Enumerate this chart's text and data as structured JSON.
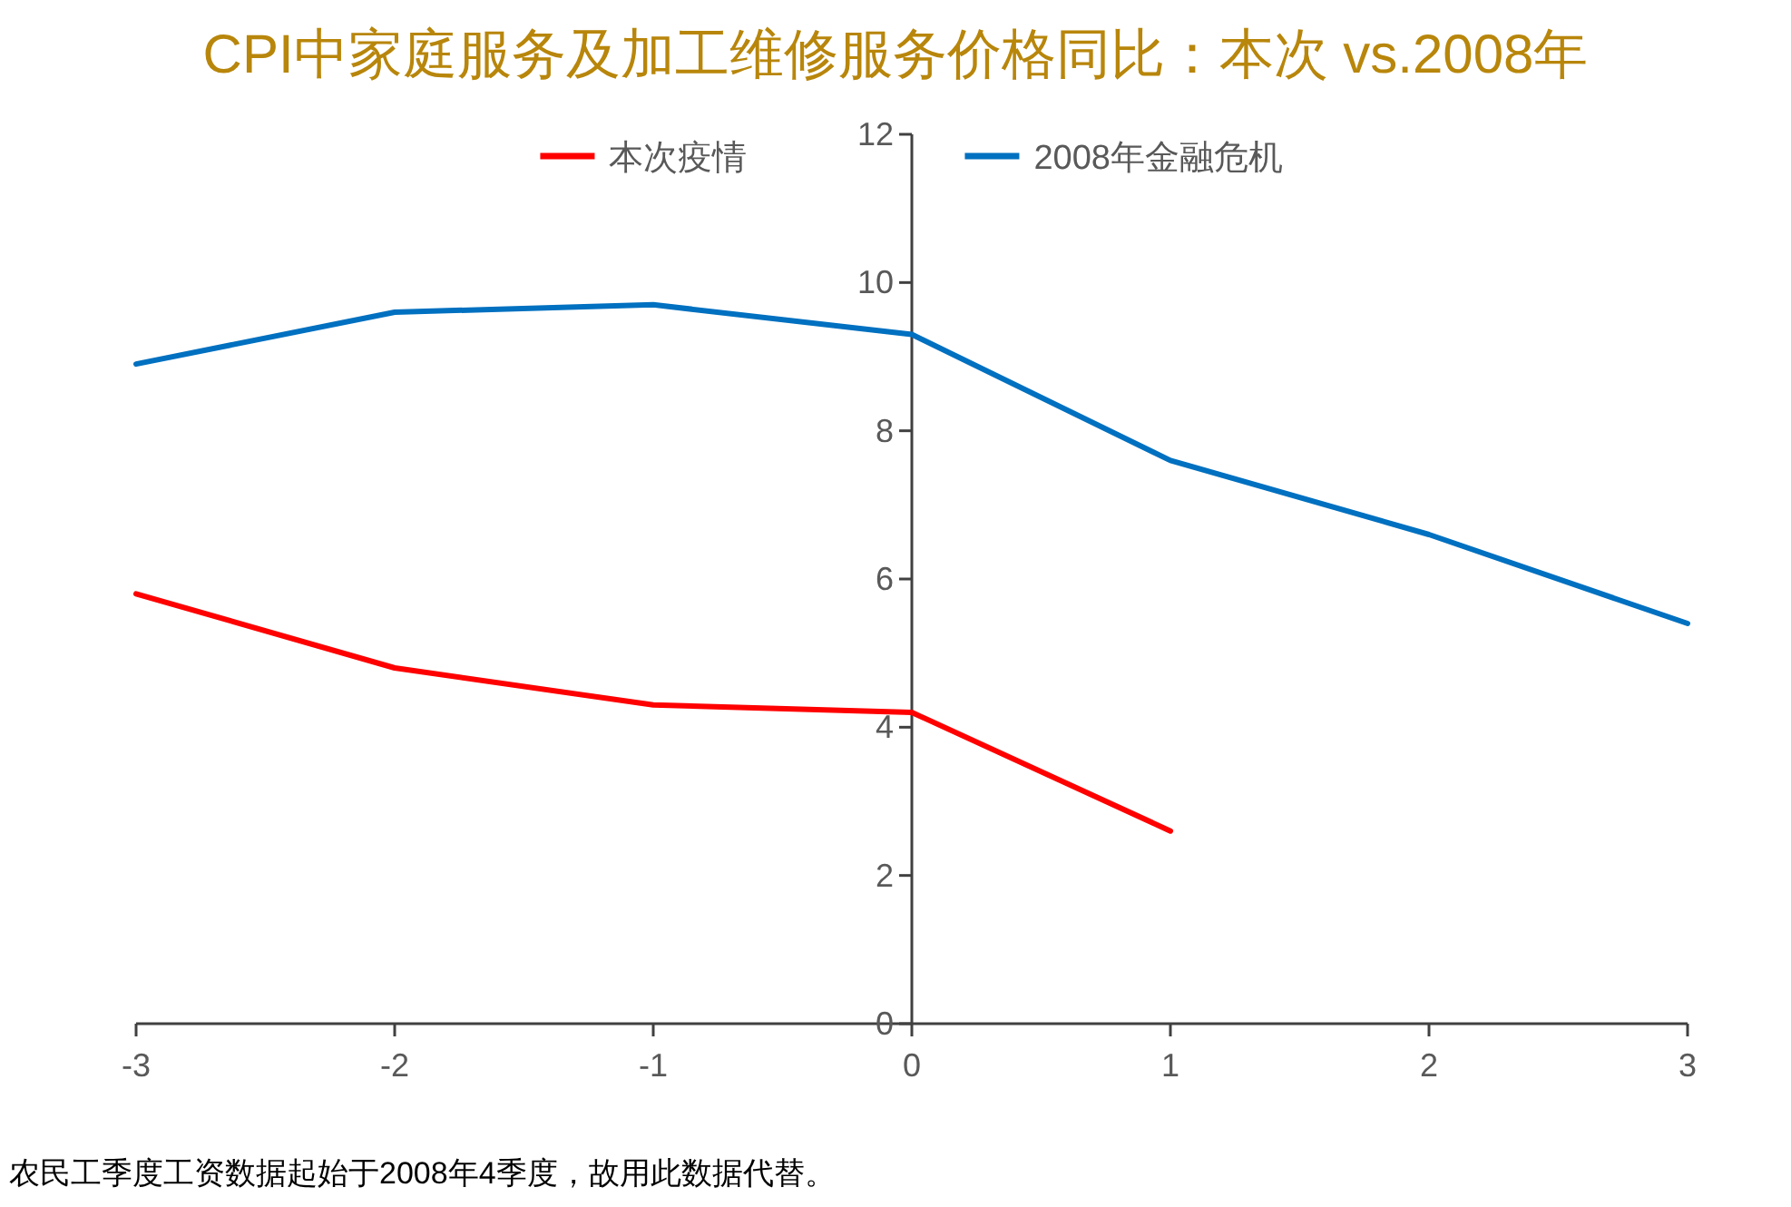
{
  "chart_data": {
    "type": "line",
    "title": "CPI中家庭服务及加工维修服务价格同比：本次 vs.2008年",
    "x": [
      -3,
      -2,
      -1,
      0,
      1,
      2,
      3
    ],
    "series": [
      {
        "name": "本次疫情",
        "color": "#ff0000",
        "values": [
          5.8,
          4.8,
          4.3,
          4.2,
          2.6,
          null,
          null
        ]
      },
      {
        "name": "2008年金融危机",
        "color": "#0070c0",
        "values": [
          8.9,
          9.6,
          9.7,
          9.3,
          7.6,
          6.6,
          5.4
        ]
      }
    ],
    "xlim": [
      -3,
      3
    ],
    "xticks": [
      -3,
      -2,
      -1,
      0,
      1,
      2,
      3
    ],
    "ylim": [
      0,
      12
    ],
    "yticks": [
      0,
      2,
      4,
      6,
      8,
      10,
      12
    ],
    "legend": "top",
    "annotations": [
      "农民工季度工资数据起始于2008年4季度，故用此数据代替。"
    ]
  }
}
